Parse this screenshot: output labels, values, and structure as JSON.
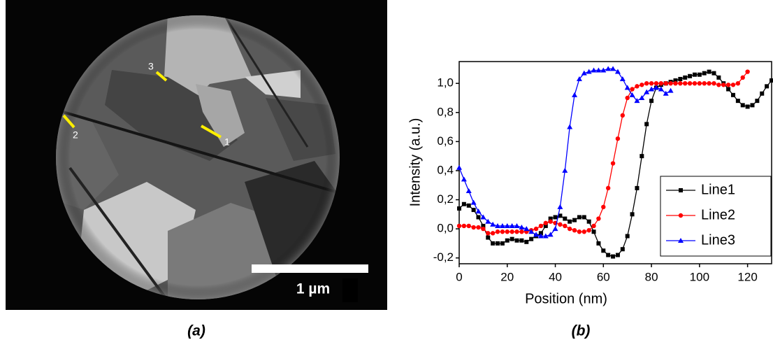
{
  "image": {
    "line_labels": [
      "1",
      "2",
      "3"
    ],
    "scale_bar": "1 µm"
  },
  "captions": [
    "(a)",
    "(b)"
  ],
  "chart_data": {
    "type": "line",
    "xlabel": "Position (nm)",
    "ylabel": "Intensity (a.u.)",
    "x": [
      0,
      2,
      4,
      6,
      8,
      10,
      12,
      14,
      16,
      18,
      20,
      22,
      24,
      26,
      28,
      30,
      32,
      34,
      36,
      38,
      40,
      42,
      44,
      46,
      48,
      50,
      52,
      54,
      56,
      58,
      60,
      62,
      64,
      66,
      68,
      70,
      72,
      74,
      76,
      78,
      80,
      82,
      84,
      86,
      88,
      90,
      92,
      94,
      96,
      98,
      100,
      102,
      104,
      106,
      108,
      110,
      112,
      114,
      116,
      118,
      120,
      122,
      124,
      126,
      128,
      130
    ],
    "series": [
      {
        "name": "Line1",
        "color": "#000000",
        "marker": "square",
        "values": [
          0.14,
          0.17,
          0.16,
          0.13,
          0.08,
          0.02,
          -0.06,
          -0.1,
          -0.1,
          -0.1,
          -0.08,
          -0.07,
          -0.08,
          -0.08,
          -0.09,
          -0.07,
          -0.05,
          -0.03,
          0.02,
          0.07,
          0.08,
          0.09,
          0.07,
          0.05,
          0.06,
          0.08,
          0.08,
          0.05,
          -0.02,
          -0.1,
          -0.15,
          -0.18,
          -0.19,
          -0.18,
          -0.14,
          -0.05,
          0.1,
          0.28,
          0.5,
          0.72,
          0.88,
          0.97,
          0.99,
          1.0,
          1.01,
          1.02,
          1.03,
          1.04,
          1.05,
          1.06,
          1.06,
          1.07,
          1.08,
          1.07,
          1.04,
          1.0,
          0.96,
          0.92,
          0.88,
          0.85,
          0.84,
          0.85,
          0.88,
          0.93,
          0.98,
          1.02
        ]
      },
      {
        "name": "Line2",
        "color": "#ff0000",
        "marker": "circle",
        "values": [
          0.02,
          0.02,
          0.02,
          0.01,
          0.01,
          0.0,
          -0.03,
          -0.03,
          -0.02,
          -0.02,
          -0.02,
          -0.02,
          -0.02,
          -0.02,
          -0.02,
          -0.01,
          0.0,
          0.02,
          0.04,
          0.05,
          0.04,
          0.03,
          0.02,
          0.0,
          -0.01,
          -0.02,
          -0.02,
          -0.01,
          0.02,
          0.07,
          0.15,
          0.28,
          0.45,
          0.62,
          0.78,
          0.9,
          0.96,
          0.98,
          0.99,
          1.0,
          1.0,
          1.0,
          1.0,
          1.0,
          1.0,
          1.0,
          1.0,
          1.0,
          1.0,
          1.0,
          1.0,
          1.0,
          1.0,
          1.0,
          0.99,
          0.99,
          0.99,
          0.99,
          1.0,
          1.04,
          1.08,
          null,
          null,
          null,
          null,
          null
        ]
      },
      {
        "name": "Line3",
        "color": "#0000ff",
        "marker": "triangle",
        "values": [
          0.42,
          0.34,
          0.26,
          0.18,
          0.12,
          0.08,
          0.05,
          0.03,
          0.02,
          0.02,
          0.02,
          0.02,
          0.02,
          0.01,
          0.0,
          -0.02,
          -0.04,
          -0.05,
          -0.05,
          -0.04,
          0.0,
          0.15,
          0.4,
          0.7,
          0.92,
          1.03,
          1.07,
          1.08,
          1.09,
          1.09,
          1.09,
          1.1,
          1.1,
          1.08,
          1.03,
          0.97,
          0.92,
          0.88,
          0.9,
          0.94,
          0.96,
          0.97,
          0.96,
          0.93,
          0.95,
          null,
          null,
          null,
          null,
          null,
          null,
          null,
          null,
          null,
          null,
          null,
          null,
          null,
          null,
          null,
          null,
          null,
          null,
          null,
          null,
          null
        ]
      }
    ],
    "xlim": [
      0,
      130
    ],
    "xticks": [
      0,
      20,
      40,
      60,
      80,
      100,
      120
    ],
    "ylim": [
      -0.24,
      1.15
    ],
    "yticks": [
      {
        "value": -0.2,
        "label": "-0,2"
      },
      {
        "value": 0,
        "label": "0,0"
      },
      {
        "value": 0.2,
        "label": "0,2"
      },
      {
        "value": 0.4,
        "label": "0,4"
      },
      {
        "value": 0.6,
        "label": "0,6"
      },
      {
        "value": 0.8,
        "label": "0,8"
      },
      {
        "value": 1.0,
        "label": "1,0"
      }
    ],
    "legend": "lower-right"
  }
}
